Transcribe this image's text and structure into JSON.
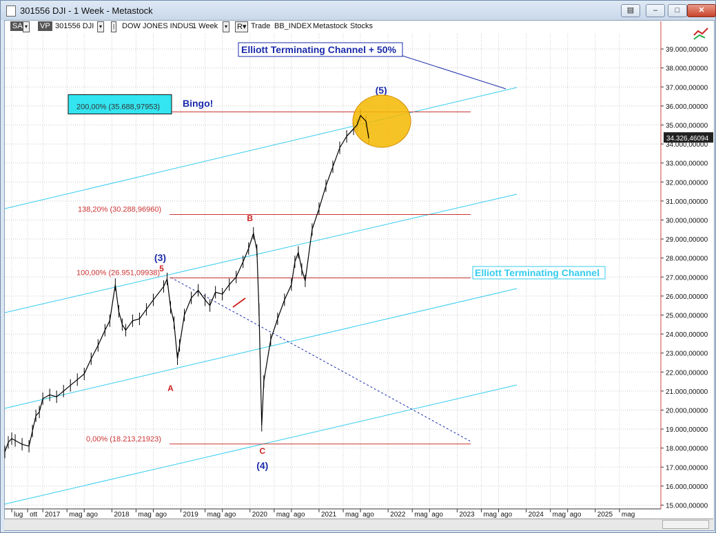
{
  "window": {
    "title": "301556 DJI - 1 Week - Metastock"
  },
  "toolbar": {
    "sa": "SA",
    "vp": "VP",
    "symbol": "301556 DJI",
    "name": "DOW JONES INDUS",
    "period": "1 Week",
    "mode": "R",
    "trade": "Trade",
    "source": "BB_INDEX",
    "provider": "Metastock",
    "category": "Stocks"
  },
  "colors": {
    "price": "#000000",
    "channel": "#33ccee",
    "fib": "#cc3333",
    "wave_label": "#1a2aaa",
    "corrective_label": "#cc2222",
    "highlight_circle": "#f5b800",
    "price_badge": "#222222"
  },
  "chart_data": {
    "type": "line",
    "title": "",
    "ylabel": "",
    "xlabel": "",
    "ylim": [
      14800,
      39800
    ],
    "yticks": [
      "15.000,00000",
      "16.000,00000",
      "17.000,00000",
      "18.000,00000",
      "19.000,00000",
      "20.000,00000",
      "21.000,00000",
      "22.000,00000",
      "23.000,00000",
      "24.000,00000",
      "25.000,00000",
      "26.000,00000",
      "27.000,00000",
      "28.000,00000",
      "29.000,00000",
      "30.000,00000",
      "31.000,00000",
      "32.000,00000",
      "33.000,00000",
      "34.000,00000",
      "35.000,00000",
      "36.000,00000",
      "37.000,00000",
      "38.000,00000",
      "39.000,00000"
    ],
    "ytick_values": [
      15000,
      16000,
      17000,
      18000,
      19000,
      20000,
      21000,
      22000,
      23000,
      24000,
      25000,
      26000,
      27000,
      28000,
      29000,
      30000,
      31000,
      32000,
      33000,
      34000,
      35000,
      36000,
      37000,
      38000,
      39000
    ],
    "xlim": [
      2016.45,
      2025.95
    ],
    "xticks": [
      {
        "t": 2016.55,
        "label": "lug"
      },
      {
        "t": 2016.78,
        "label": "ott"
      },
      {
        "t": 2017.0,
        "label": "2017"
      },
      {
        "t": 2017.35,
        "label": "mag"
      },
      {
        "t": 2017.6,
        "label": "ago"
      },
      {
        "t": 2018.0,
        "label": "2018"
      },
      {
        "t": 2018.35,
        "label": "mag"
      },
      {
        "t": 2018.6,
        "label": "ago"
      },
      {
        "t": 2019.0,
        "label": "2019"
      },
      {
        "t": 2019.35,
        "label": "mag"
      },
      {
        "t": 2019.6,
        "label": "ago"
      },
      {
        "t": 2020.0,
        "label": "2020"
      },
      {
        "t": 2020.35,
        "label": "mag"
      },
      {
        "t": 2020.6,
        "label": "ago"
      },
      {
        "t": 2021.0,
        "label": "2021"
      },
      {
        "t": 2021.35,
        "label": "mag"
      },
      {
        "t": 2021.6,
        "label": "ago"
      },
      {
        "t": 2022.0,
        "label": "2022"
      },
      {
        "t": 2022.35,
        "label": "mag"
      },
      {
        "t": 2022.6,
        "label": "ago"
      },
      {
        "t": 2023.0,
        "label": "2023"
      },
      {
        "t": 2023.35,
        "label": "mag"
      },
      {
        "t": 2023.6,
        "label": "ago"
      },
      {
        "t": 2024.0,
        "label": "2024"
      },
      {
        "t": 2024.35,
        "label": "mag"
      },
      {
        "t": 2024.6,
        "label": "ago"
      },
      {
        "t": 2025.0,
        "label": "2025"
      },
      {
        "t": 2025.35,
        "label": "mag"
      }
    ],
    "series": [
      {
        "x": [
          2016.45,
          2016.5,
          2016.55,
          2016.6,
          2016.7,
          2016.8,
          2016.85,
          2016.9,
          2016.95,
          2017.0,
          2017.1,
          2017.2,
          2017.3,
          2017.4,
          2017.5,
          2017.6,
          2017.7,
          2017.8,
          2017.9,
          2017.97,
          2018.05,
          2018.1,
          2018.15,
          2018.2,
          2018.3,
          2018.4,
          2018.5,
          2018.6,
          2018.75,
          2018.8,
          2018.85,
          2018.9,
          2018.95,
          2018.98,
          2019.05,
          2019.15,
          2019.25,
          2019.35,
          2019.42,
          2019.5,
          2019.6,
          2019.7,
          2019.8,
          2019.9,
          2019.98,
          2020.05,
          2020.1,
          2020.13,
          2020.17,
          2020.2,
          2020.3,
          2020.4,
          2020.5,
          2020.6,
          2020.65,
          2020.7,
          2020.75,
          2020.8,
          2020.9,
          2021.0,
          2021.1,
          2021.2,
          2021.3,
          2021.4,
          2021.5,
          2021.55,
          2021.6,
          2021.68,
          2021.72
        ],
        "values": [
          17800,
          18300,
          18500,
          18400,
          18200,
          18100,
          18900,
          19700,
          19900,
          20600,
          20800,
          20700,
          21000,
          21300,
          21600,
          21900,
          22700,
          23400,
          24200,
          24700,
          26600,
          25200,
          24500,
          24200,
          24700,
          24800,
          25300,
          25800,
          26500,
          26900,
          25400,
          24600,
          22700,
          23400,
          25000,
          25900,
          26300,
          25800,
          25500,
          26200,
          26100,
          26600,
          27000,
          27800,
          28500,
          29300,
          28400,
          25300,
          19200,
          21500,
          23700,
          24800,
          25800,
          26600,
          27800,
          28300,
          27400,
          26800,
          29500,
          30600,
          31800,
          32800,
          33800,
          34400,
          34800,
          35000,
          35500,
          35200,
          34300
        ]
      }
    ],
    "fib_levels": [
      {
        "value": 35688.97953,
        "label": "200,00% (35.688,97953)"
      },
      {
        "value": 30288.9696,
        "label": "138,20% (30.288,96960)"
      },
      {
        "value": 26951.09938,
        "label": "100,00% (26.951,09938)"
      },
      {
        "value": 18213.21923,
        "label": "0,00% (18.213,21923)"
      }
    ],
    "wave_labels": [
      {
        "t": 2018.7,
        "v": 27850,
        "label": "(3)",
        "kind": "impulse"
      },
      {
        "t": 2018.72,
        "v": 27300,
        "label": "5",
        "kind": "corrective"
      },
      {
        "t": 2018.85,
        "v": 21000,
        "label": "A",
        "kind": "corrective"
      },
      {
        "t": 2020.0,
        "v": 29950,
        "label": "B",
        "kind": "corrective"
      },
      {
        "t": 2020.18,
        "v": 17700,
        "label": "C",
        "kind": "corrective"
      },
      {
        "t": 2020.18,
        "v": 16900,
        "label": "(4)",
        "kind": "impulse"
      },
      {
        "t": 2021.9,
        "v": 36650,
        "label": "(5)",
        "kind": "impulse"
      }
    ],
    "annotations": {
      "bingo": "Bingo!",
      "channel_50": "Elliott Terminating Channel + 50%",
      "channel": "Elliott Terminating Channel",
      "last_price": "34.326,46094"
    },
    "grid": true,
    "legend": "none"
  }
}
